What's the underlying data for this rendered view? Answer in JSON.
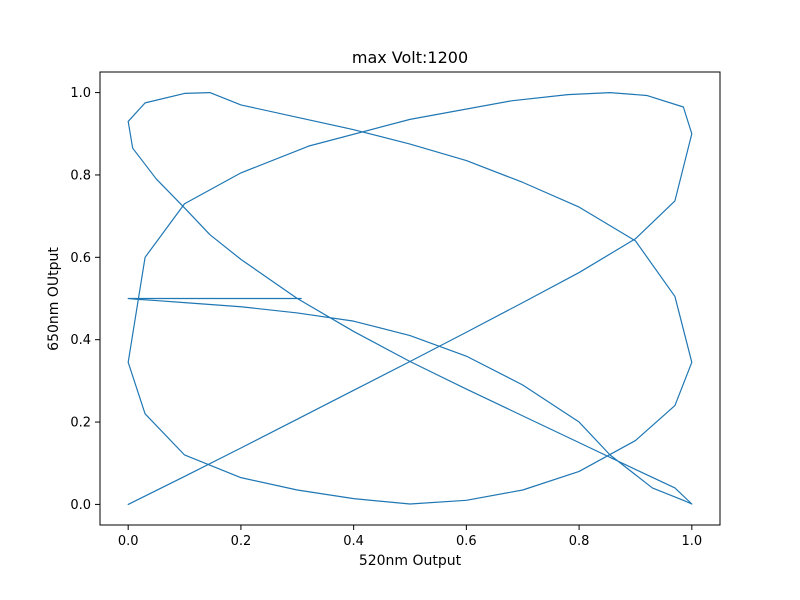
{
  "chart_data": {
    "type": "line",
    "title": "max Volt:1200",
    "xlabel": "520nm Output",
    "ylabel": "650nm OUtput",
    "xlim": [
      -0.05,
      1.05
    ],
    "ylim": [
      -0.05,
      1.05
    ],
    "xticks": [
      0.0,
      0.2,
      0.4,
      0.6,
      0.8,
      1.0
    ],
    "yticks": [
      0.0,
      0.2,
      0.4,
      0.6,
      0.8,
      1.0
    ],
    "xtick_labels": [
      "0.0",
      "0.2",
      "0.4",
      "0.6",
      "0.8",
      "1.0"
    ],
    "ytick_labels": [
      "0.0",
      "0.2",
      "0.4",
      "0.6",
      "0.8",
      "1.0"
    ],
    "grid": false,
    "series": [
      {
        "color": "#1f77b4",
        "x": [
          0.0,
          0.1,
          0.2,
          0.3,
          0.4,
          0.5,
          0.6,
          0.7,
          0.8,
          0.9,
          0.97,
          1.0,
          0.985,
          0.92,
          0.855,
          0.78,
          0.68,
          0.5,
          0.32,
          0.2,
          0.1,
          0.03,
          0.0,
          0.03,
          0.1,
          0.2,
          0.3,
          0.4,
          0.5,
          0.6,
          0.7,
          0.8,
          0.9,
          0.97,
          1.0,
          0.97,
          0.9,
          0.8,
          0.7,
          0.6,
          0.5,
          0.4,
          0.3,
          0.2,
          0.145,
          0.1,
          0.03,
          0.0,
          0.008,
          0.05,
          0.1,
          0.145,
          0.2,
          0.3,
          0.4,
          0.5,
          0.6,
          0.7,
          0.8,
          0.9,
          0.97,
          1.0,
          0.985,
          0.93,
          0.855,
          0.8,
          0.7,
          0.6,
          0.5,
          0.4,
          0.3,
          0.2,
          0.1,
          0.05,
          0.015,
          0.0,
          0.015,
          0.05,
          0.1,
          0.15,
          0.2,
          0.25,
          0.307
        ],
        "y": [
          0.0,
          0.068,
          0.137,
          0.207,
          0.277,
          0.347,
          0.418,
          0.49,
          0.563,
          0.645,
          0.737,
          0.9,
          0.965,
          0.993,
          1.0,
          0.995,
          0.98,
          0.935,
          0.87,
          0.805,
          0.73,
          0.6,
          0.345,
          0.22,
          0.12,
          0.065,
          0.035,
          0.014,
          0.001,
          0.01,
          0.035,
          0.08,
          0.155,
          0.24,
          0.345,
          0.505,
          0.64,
          0.722,
          0.782,
          0.835,
          0.875,
          0.91,
          0.94,
          0.97,
          1.0,
          0.998,
          0.975,
          0.93,
          0.865,
          0.79,
          0.72,
          0.655,
          0.595,
          0.5,
          0.42,
          0.347,
          0.28,
          0.215,
          0.15,
          0.085,
          0.04,
          0.001,
          0.01,
          0.04,
          0.12,
          0.2,
          0.29,
          0.36,
          0.41,
          0.445,
          0.465,
          0.48,
          0.49,
          0.495,
          0.498,
          0.5,
          0.5,
          0.5,
          0.5,
          0.5,
          0.5,
          0.5,
          0.5
        ]
      }
    ]
  }
}
